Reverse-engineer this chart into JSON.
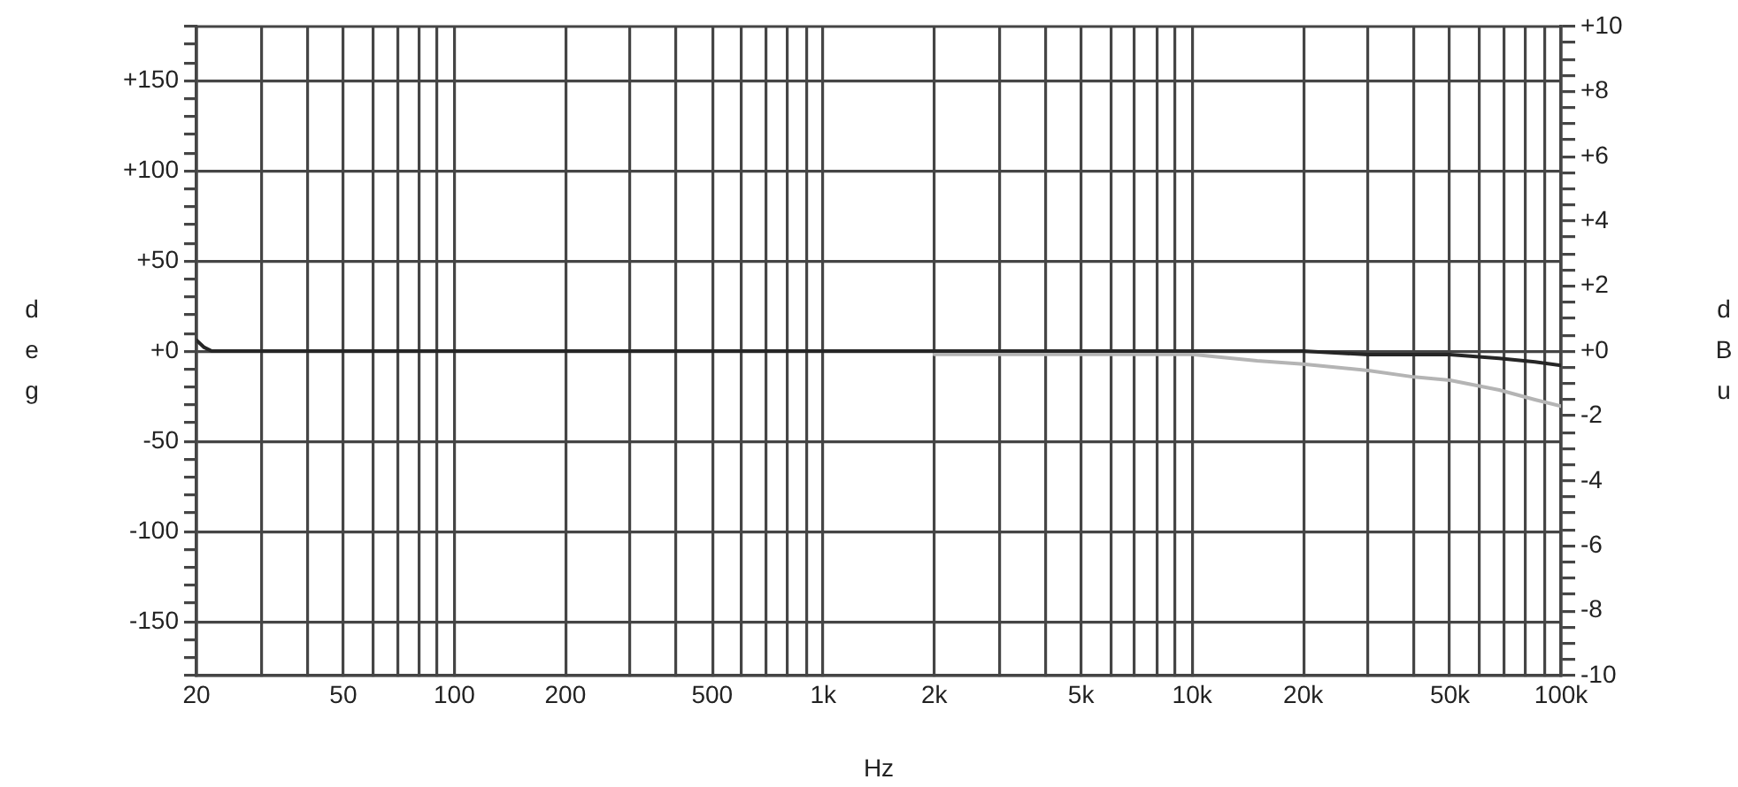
{
  "chart_data": {
    "type": "line",
    "xlabel": "Hz",
    "ylabel": "deg",
    "y2label": "dBu",
    "log": "x",
    "grid": true,
    "marker": "none",
    "line_style": "solid",
    "xlim": [
      20,
      100000
    ],
    "xticks": [
      20,
      {
        "value": 30,
        "label": null
      },
      {
        "value": 40,
        "label": null
      },
      50,
      {
        "value": 60,
        "label": null
      },
      {
        "value": 70,
        "label": null
      },
      {
        "value": 80,
        "label": null
      },
      {
        "value": 90,
        "label": null
      },
      100,
      200,
      {
        "value": 300,
        "label": null
      },
      {
        "value": 400,
        "label": null
      },
      500,
      {
        "value": 600,
        "label": null
      },
      {
        "value": 700,
        "label": null
      },
      {
        "value": 800,
        "label": null
      },
      {
        "value": 900,
        "label": null
      },
      {
        "value": 1000,
        "label": "1k"
      },
      {
        "value": 2000,
        "label": "2k"
      },
      {
        "value": 3000,
        "label": null
      },
      {
        "value": 4000,
        "label": null
      },
      {
        "value": 5000,
        "label": "5k"
      },
      {
        "value": 6000,
        "label": null
      },
      {
        "value": 7000,
        "label": null
      },
      {
        "value": 8000,
        "label": null
      },
      {
        "value": 9000,
        "label": null
      },
      {
        "value": 10000,
        "label": "10k"
      },
      {
        "value": 20000,
        "label": "20k"
      },
      {
        "value": 30000,
        "label": null
      },
      {
        "value": 40000,
        "label": null
      },
      {
        "value": 50000,
        "label": "50k"
      },
      {
        "value": 60000,
        "label": null
      },
      {
        "value": 70000,
        "label": null
      },
      {
        "value": 80000,
        "label": null
      },
      {
        "value": 90000,
        "label": null
      },
      {
        "value": 100000,
        "label": "100k"
      }
    ],
    "ylim": [
      -180,
      180
    ],
    "yticks": [
      {
        "value": -180,
        "label": null
      },
      {
        "value": -170,
        "label": null
      },
      {
        "value": -160,
        "label": null
      },
      -150,
      {
        "value": -140,
        "label": null
      },
      {
        "value": -130,
        "label": null
      },
      {
        "value": -120,
        "label": null
      },
      {
        "value": -110,
        "label": null
      },
      -100,
      {
        "value": -90,
        "label": null
      },
      {
        "value": -80,
        "label": null
      },
      {
        "value": -70,
        "label": null
      },
      {
        "value": -60,
        "label": null
      },
      -50,
      {
        "value": -40,
        "label": null
      },
      {
        "value": -30,
        "label": null
      },
      {
        "value": -20,
        "label": null
      },
      {
        "value": -10,
        "label": null
      },
      {
        "value": 0,
        "label": "+0"
      },
      {
        "value": 10,
        "label": null
      },
      {
        "value": 20,
        "label": null
      },
      {
        "value": 30,
        "label": null
      },
      {
        "value": 40,
        "label": null
      },
      {
        "value": 50,
        "label": "+50"
      },
      {
        "value": 60,
        "label": null
      },
      {
        "value": 70,
        "label": null
      },
      {
        "value": 80,
        "label": null
      },
      {
        "value": 90,
        "label": null
      },
      {
        "value": 100,
        "label": "+100"
      },
      {
        "value": 110,
        "label": null
      },
      {
        "value": 120,
        "label": null
      },
      {
        "value": 130,
        "label": null
      },
      {
        "value": 140,
        "label": null
      },
      {
        "value": 150,
        "label": "+150"
      },
      {
        "value": 160,
        "label": null
      },
      {
        "value": 170,
        "label": null
      },
      {
        "value": 180,
        "label": null
      }
    ],
    "y2lim": [
      -10,
      10
    ],
    "y2ticks": [
      -10,
      {
        "value": -9.5,
        "label": null
      },
      {
        "value": -9,
        "label": null
      },
      {
        "value": -8.5,
        "label": null
      },
      -8,
      {
        "value": -7.5,
        "label": null
      },
      {
        "value": -7,
        "label": null
      },
      {
        "value": -6.5,
        "label": null
      },
      -6,
      {
        "value": -5.5,
        "label": null
      },
      {
        "value": -5,
        "label": null
      },
      {
        "value": -4.5,
        "label": null
      },
      -4,
      {
        "value": -3.5,
        "label": null
      },
      {
        "value": -3,
        "label": null
      },
      {
        "value": -2.5,
        "label": null
      },
      -2,
      {
        "value": -1.5,
        "label": null
      },
      {
        "value": -1,
        "label": null
      },
      {
        "value": -0.5,
        "label": null
      },
      {
        "value": 0,
        "label": "+0"
      },
      {
        "value": 0.5,
        "label": null
      },
      {
        "value": 1,
        "label": null
      },
      {
        "value": 1.5,
        "label": null
      },
      {
        "value": 2,
        "label": "+2"
      },
      {
        "value": 2.5,
        "label": null
      },
      {
        "value": 3,
        "label": null
      },
      {
        "value": 3.5,
        "label": null
      },
      {
        "value": 4,
        "label": "+4"
      },
      {
        "value": 4.5,
        "label": null
      },
      {
        "value": 5,
        "label": null
      },
      {
        "value": 5.5,
        "label": null
      },
      {
        "value": 6,
        "label": "+6"
      },
      {
        "value": 6.5,
        "label": null
      },
      {
        "value": 7,
        "label": null
      },
      {
        "value": 7.5,
        "label": null
      },
      {
        "value": 8,
        "label": "+8"
      },
      {
        "value": 8.5,
        "label": null
      },
      {
        "value": 9,
        "label": null
      },
      {
        "value": 9.5,
        "label": null
      },
      {
        "value": 10,
        "label": "+10"
      }
    ],
    "series": [
      {
        "color": "#262626",
        "x": [
          20,
          21,
          22,
          100,
          1000,
          10000,
          20000,
          30000,
          50000,
          68000,
          85000,
          100000
        ],
        "values": [
          6,
          2,
          0,
          0,
          0,
          0,
          0,
          -2,
          -2,
          -4,
          -6,
          -8
        ]
      },
      {
        "color": "#b4b4b4",
        "axis": "y2",
        "x": [
          2000,
          5000,
          10000,
          15000,
          20000,
          30000,
          40000,
          50000,
          68000,
          85000,
          100000
        ],
        "values": [
          -0.1,
          -0.1,
          -0.1,
          -0.3,
          -0.4,
          -0.6,
          -0.8,
          -0.9,
          -1.2,
          -1.5,
          -1.7
        ]
      }
    ]
  }
}
